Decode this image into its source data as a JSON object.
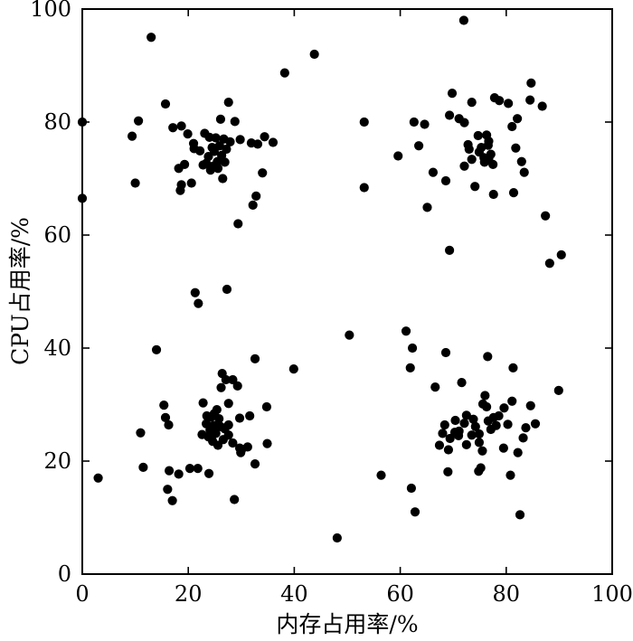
{
  "chart_data": {
    "type": "scatter",
    "title": "",
    "xlabel": "内存占用率/%",
    "ylabel": "CPU占用率/%",
    "xlim": [
      0,
      100
    ],
    "ylim": [
      0,
      100
    ],
    "xticks": [
      0,
      20,
      40,
      60,
      80,
      100
    ],
    "yticks": [
      0,
      20,
      40,
      60,
      80,
      100
    ],
    "grid": false,
    "legend": "none",
    "colors": {
      "marker": "#000000",
      "frame": "#000000",
      "background": "#ffffff"
    },
    "series": [
      {
        "name": "",
        "points": [
          [
            13,
            95
          ],
          [
            43.8,
            92
          ],
          [
            38.2,
            88.7
          ],
          [
            72,
            98
          ],
          [
            0,
            80
          ],
          [
            10.6,
            80.2
          ],
          [
            9.4,
            77.5
          ],
          [
            10,
            69.2
          ],
          [
            15.7,
            83.2
          ],
          [
            17.1,
            79
          ],
          [
            18.7,
            79.3
          ],
          [
            19.9,
            77.9
          ],
          [
            21,
            76.2
          ],
          [
            22.2,
            74.9
          ],
          [
            23.1,
            78
          ],
          [
            24,
            77.3
          ],
          [
            24.5,
            75.5
          ],
          [
            25.2,
            77.2
          ],
          [
            25.9,
            75.8
          ],
          [
            26.7,
            77
          ],
          [
            27.2,
            75.2
          ],
          [
            27.6,
            83.5
          ],
          [
            28.8,
            80.1
          ],
          [
            26.1,
            80.5
          ],
          [
            22.8,
            72.4
          ],
          [
            23.8,
            73.9
          ],
          [
            24.9,
            74.8
          ],
          [
            25.5,
            73
          ],
          [
            26.3,
            74.1
          ],
          [
            26.9,
            72.9
          ],
          [
            24.2,
            71.5
          ],
          [
            25.6,
            71.8
          ],
          [
            27.9,
            76.5
          ],
          [
            29.8,
            76.9
          ],
          [
            31.9,
            76.3
          ],
          [
            33.1,
            76.1
          ],
          [
            34.4,
            77.4
          ],
          [
            36,
            76.4
          ],
          [
            34,
            71
          ],
          [
            32.2,
            65.3
          ],
          [
            32.8,
            66.9
          ],
          [
            29.4,
            62
          ],
          [
            26.5,
            70
          ],
          [
            24.7,
            72.2
          ],
          [
            23.4,
            72.7
          ],
          [
            21.1,
            75.3
          ],
          [
            20.6,
            69.2
          ],
          [
            18.2,
            71.8
          ],
          [
            19.3,
            72.5
          ],
          [
            18.5,
            67.9
          ],
          [
            18.7,
            68.9
          ],
          [
            0,
            66.5
          ],
          [
            53.2,
            80
          ],
          [
            53.2,
            68.4
          ],
          [
            59.6,
            74
          ],
          [
            62.6,
            80
          ],
          [
            63.5,
            75.8
          ],
          [
            64.6,
            79.6
          ],
          [
            65.1,
            64.9
          ],
          [
            66.2,
            71.1
          ],
          [
            68.6,
            69.6
          ],
          [
            69.3,
            81.2
          ],
          [
            69.8,
            85.1
          ],
          [
            71.1,
            80.6
          ],
          [
            72.1,
            79.9
          ],
          [
            72.8,
            76
          ],
          [
            73.5,
            73.4
          ],
          [
            73.5,
            83.5
          ],
          [
            74.7,
            77.6
          ],
          [
            75.3,
            75.5
          ],
          [
            75.8,
            73.7
          ],
          [
            76.3,
            77.7
          ],
          [
            76.6,
            75.9
          ],
          [
            77.1,
            74.3
          ],
          [
            77.5,
            72.5
          ],
          [
            75.9,
            72.9
          ],
          [
            74.9,
            74.7
          ],
          [
            76.7,
            76.6
          ],
          [
            77.8,
            84.3
          ],
          [
            78.7,
            83.8
          ],
          [
            80.4,
            83.3
          ],
          [
            81.1,
            79.2
          ],
          [
            81.8,
            75.4
          ],
          [
            82.9,
            73
          ],
          [
            83.4,
            71.1
          ],
          [
            84.7,
            86.9
          ],
          [
            84.5,
            83.9
          ],
          [
            82.1,
            80.6
          ],
          [
            81.4,
            67.5
          ],
          [
            77.6,
            67.2
          ],
          [
            74.1,
            68.6
          ],
          [
            72.1,
            72.2
          ],
          [
            73,
            75.2
          ],
          [
            76.7,
            73.5
          ],
          [
            86.8,
            82.8
          ],
          [
            87.4,
            63.4
          ],
          [
            88.2,
            55
          ],
          [
            90.4,
            56.5
          ],
          [
            69.3,
            57.3
          ],
          [
            21.3,
            49.8
          ],
          [
            21.9,
            47.9
          ],
          [
            27.3,
            50.4
          ],
          [
            14,
            39.7
          ],
          [
            16.3,
            26.4
          ],
          [
            15.4,
            29.9
          ],
          [
            15.7,
            27.7
          ],
          [
            11,
            25
          ],
          [
            11.5,
            18.9
          ],
          [
            3,
            17
          ],
          [
            16.4,
            18.3
          ],
          [
            18.2,
            17.7
          ],
          [
            20.3,
            18.7
          ],
          [
            21.8,
            18.7
          ],
          [
            23.9,
            17.8
          ],
          [
            16.1,
            15
          ],
          [
            17,
            13
          ],
          [
            28.7,
            13.2
          ],
          [
            22.8,
            30.3
          ],
          [
            24.3,
            27.8
          ],
          [
            24.8,
            26.3
          ],
          [
            25.4,
            29.1
          ],
          [
            26.2,
            33
          ],
          [
            26.4,
            35.5
          ],
          [
            27.1,
            34.4
          ],
          [
            27.6,
            30.2
          ],
          [
            28.4,
            34.4
          ],
          [
            29.3,
            33.3
          ],
          [
            29.7,
            27.6
          ],
          [
            31.6,
            28
          ],
          [
            32.6,
            38.1
          ],
          [
            34.8,
            29.6
          ],
          [
            34.9,
            23.1
          ],
          [
            32.6,
            19.5
          ],
          [
            31.2,
            22.5
          ],
          [
            29.9,
            21.5
          ],
          [
            28.4,
            23.2
          ],
          [
            27.6,
            24.6
          ],
          [
            26.6,
            23.8
          ],
          [
            25.6,
            22.8
          ],
          [
            24.6,
            23.5
          ],
          [
            23.8,
            24.3
          ],
          [
            22.6,
            24.7
          ],
          [
            23.4,
            26.6
          ],
          [
            24.1,
            25.5
          ],
          [
            25.2,
            24.9
          ],
          [
            26.1,
            26.1
          ],
          [
            26.9,
            25.7
          ],
          [
            27.6,
            26.4
          ],
          [
            25.8,
            27.5
          ],
          [
            24.9,
            28.4
          ],
          [
            23.5,
            28
          ],
          [
            39.9,
            36.3
          ],
          [
            29.7,
            22.3
          ],
          [
            30.1,
            22.1
          ],
          [
            50.4,
            42.3
          ],
          [
            48.1,
            6.4
          ],
          [
            56.4,
            17.5
          ],
          [
            61.1,
            43
          ],
          [
            62.3,
            40
          ],
          [
            61.9,
            36.5
          ],
          [
            62.1,
            15.2
          ],
          [
            62.8,
            11
          ],
          [
            66.6,
            33.1
          ],
          [
            68.6,
            39.2
          ],
          [
            69.1,
            22
          ],
          [
            69,
            18.1
          ],
          [
            67.4,
            22.8
          ],
          [
            68,
            24.9
          ],
          [
            68.4,
            26.4
          ],
          [
            69.4,
            24
          ],
          [
            70.4,
            27.2
          ],
          [
            71.1,
            25.3
          ],
          [
            71.6,
            33.9
          ],
          [
            72.1,
            26.7
          ],
          [
            72.5,
            28.1
          ],
          [
            73.5,
            24.6
          ],
          [
            74.2,
            26.1
          ],
          [
            74.9,
            23.3
          ],
          [
            75.5,
            21.8
          ],
          [
            75.2,
            18.8
          ],
          [
            76,
            31.6
          ],
          [
            76.3,
            29.6
          ],
          [
            76.6,
            27.1
          ],
          [
            77.1,
            25.6
          ],
          [
            77.6,
            27.7
          ],
          [
            78.1,
            26.3
          ],
          [
            78.6,
            28
          ],
          [
            79.5,
            22.3
          ],
          [
            79.6,
            29.4
          ],
          [
            80.3,
            26.5
          ],
          [
            81.1,
            30.6
          ],
          [
            81.3,
            36.5
          ],
          [
            82.2,
            21.5
          ],
          [
            83.2,
            24.1
          ],
          [
            83.7,
            25.9
          ],
          [
            84.6,
            29.8
          ],
          [
            85.5,
            26.6
          ],
          [
            89.9,
            32.5
          ],
          [
            82.6,
            10.5
          ],
          [
            80.8,
            17.5
          ],
          [
            76.5,
            38.5
          ],
          [
            74.9,
            24.8
          ],
          [
            72.5,
            22.9
          ],
          [
            71,
            24.5
          ],
          [
            73.8,
            27.4
          ],
          [
            75.6,
            30.1
          ],
          [
            74.8,
            18.2
          ],
          [
            70.3,
            25.1
          ]
        ]
      }
    ]
  }
}
